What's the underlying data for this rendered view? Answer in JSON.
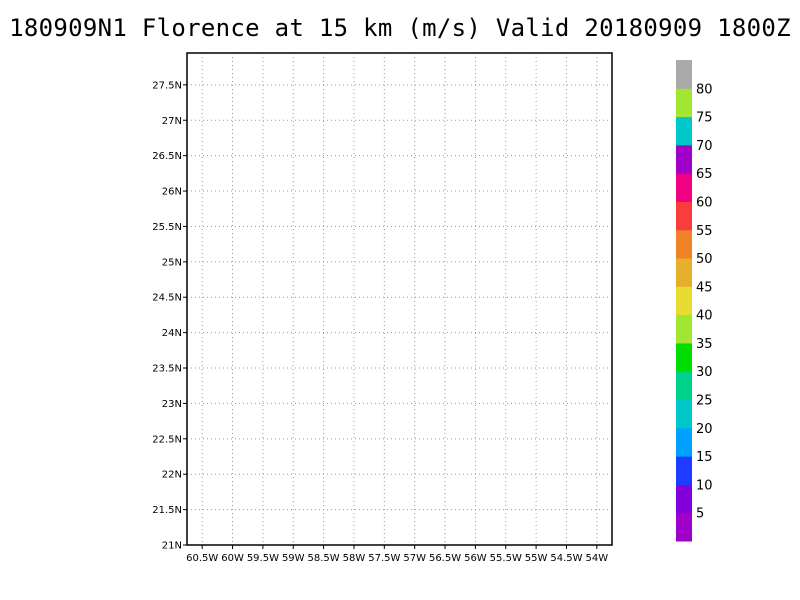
{
  "title": "180909N1 Florence at 15 km (m/s) Valid 20180909  1800Z",
  "map": {
    "lat_labels": [
      "21N",
      "21.5N",
      "22N",
      "22.5N",
      "23N",
      "23.5N",
      "24N",
      "24.5N",
      "25N",
      "25.5N",
      "26N",
      "26.5N",
      "27N",
      "27.5N"
    ],
    "lat_values": [
      21,
      21.5,
      22,
      22.5,
      23,
      23.5,
      24,
      24.5,
      25,
      25.5,
      26,
      26.5,
      27,
      27.5
    ],
    "lon_labels": [
      "60.5W",
      "60W",
      "59.5W",
      "59W",
      "58.5W",
      "58W",
      "57.5W",
      "57W",
      "56.5W",
      "56W",
      "55.5W",
      "55W",
      "54.5W",
      "54W"
    ],
    "lon_values": [
      -60.5,
      -60,
      -59.5,
      -59,
      -58.5,
      -58,
      -57.5,
      -57,
      -56.5,
      -56,
      -55.5,
      -55,
      -54.5,
      -54
    ],
    "lon_range": [
      -60.75,
      -53.75
    ],
    "lat_range": [
      21,
      27.95
    ],
    "grid": true
  },
  "colorbar": {
    "colors": [
      "#a000c8",
      "#8200dc",
      "#1e3cff",
      "#00a0ff",
      "#00c8c8",
      "#00d28c",
      "#00dc00",
      "#a0e632",
      "#e6dc32",
      "#e6af2d",
      "#f08228",
      "#fa3c3c",
      "#f00082",
      "#a000c8",
      "#00c8c8",
      "#a0e632",
      "#aaaaaa"
    ],
    "labels": [
      "5",
      "10",
      "15",
      "20",
      "25",
      "30",
      "35",
      "40",
      "45",
      "50",
      "55",
      "60",
      "65",
      "70",
      "75",
      "80"
    ]
  }
}
